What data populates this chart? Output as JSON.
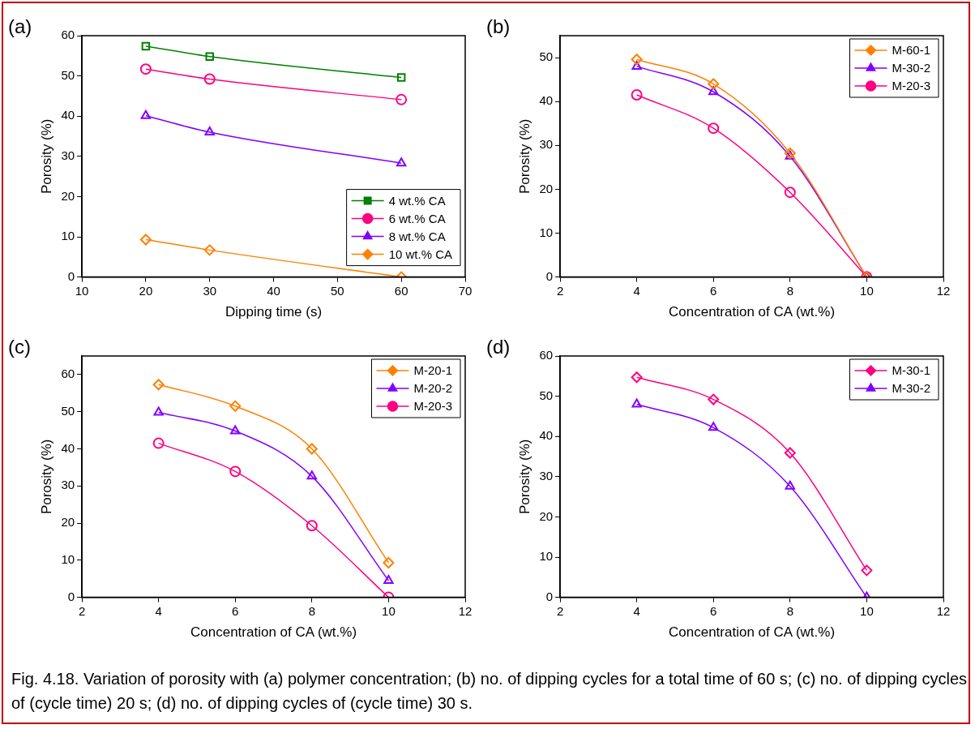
{
  "chart_data": [
    {
      "type": "line",
      "title": "(a)",
      "xlabel": "Dipping time (s)",
      "ylabel": "Porosity (%)",
      "xlim": [
        10,
        70
      ],
      "xticks": [
        10,
        20,
        30,
        40,
        50,
        60,
        70
      ],
      "ylim": [
        0,
        60
      ],
      "yticks": [
        0,
        10,
        20,
        30,
        40,
        50,
        60
      ],
      "grid": false,
      "legend": "bottom right",
      "line_style": "solid",
      "x": [
        20,
        30,
        60
      ],
      "series": [
        {
          "name": "4 wt.% CA",
          "color": "#008000",
          "marker": "square",
          "values": [
            57.4,
            54.8,
            49.6
          ]
        },
        {
          "name": "6 wt.% CA",
          "color": "#ff0080",
          "marker": "circle",
          "values": [
            51.7,
            49.2,
            44.1
          ]
        },
        {
          "name": "8 wt.% CA",
          "color": "#8000ff",
          "marker": "triangle",
          "values": [
            40.1,
            36.0,
            28.3
          ]
        },
        {
          "name": "10 wt.% CA",
          "color": "#ff8000",
          "marker": "diamond",
          "values": [
            9.3,
            6.7,
            0
          ]
        }
      ],
      "annotations": [
        "Fig. 4.18. Variation of porosity with (a) polymer concentration; (b) no. of dipping cycles for a total time of 60 s; (c) no. of dipping cycles of (cycle time) 20 s; (d) no. of dipping cycles of (cycle time) 30 s."
      ]
    },
    {
      "type": "line",
      "title": "(b)",
      "xlabel": "Concentration of CA (wt.%)",
      "ylabel": "Porosity (%)",
      "xlim": [
        2,
        12
      ],
      "xticks": [
        2,
        4,
        6,
        8,
        10,
        12
      ],
      "ylim": [
        0,
        55
      ],
      "yticks": [
        0,
        10,
        20,
        30,
        40,
        50
      ],
      "grid": false,
      "legend": "top right",
      "line_style": "solid",
      "x": [
        4,
        6,
        8,
        10
      ],
      "series": [
        {
          "name": "M-60-1",
          "color": "#ff8000",
          "marker": "diamond",
          "values": [
            49.6,
            44.0,
            28.2,
            0
          ]
        },
        {
          "name": "M-30-2",
          "color": "#8000ff",
          "marker": "triangle",
          "values": [
            48.0,
            42.2,
            27.5,
            0
          ]
        },
        {
          "name": "M-20-3",
          "color": "#ff0080",
          "marker": "circle",
          "values": [
            41.5,
            33.9,
            19.3,
            0
          ]
        }
      ]
    },
    {
      "type": "line",
      "title": "(c)",
      "xlabel": "Concentration of CA (wt.%)",
      "ylabel": "Porosity (%)",
      "xlim": [
        2,
        12
      ],
      "xticks": [
        2,
        4,
        6,
        8,
        10,
        12
      ],
      "ylim": [
        0,
        65
      ],
      "yticks": [
        0,
        10,
        20,
        30,
        40,
        50,
        60
      ],
      "grid": false,
      "legend": "top right",
      "line_style": "solid",
      "x": [
        4,
        6,
        8,
        10
      ],
      "series": [
        {
          "name": "M-20-1",
          "color": "#ff8000",
          "marker": "diamond",
          "values": [
            57.3,
            51.5,
            40.0,
            9.3
          ]
        },
        {
          "name": "M-20-2",
          "color": "#8000ff",
          "marker": "triangle",
          "values": [
            49.8,
            44.8,
            32.6,
            4.5
          ]
        },
        {
          "name": "M-20-3",
          "color": "#ff0080",
          "marker": "circle",
          "values": [
            41.5,
            33.9,
            19.3,
            0
          ]
        }
      ]
    },
    {
      "type": "line",
      "title": "(d)",
      "xlabel": "Concentration of CA (wt.%)",
      "ylabel": "Porosity (%)",
      "xlim": [
        2,
        12
      ],
      "xticks": [
        2,
        4,
        6,
        8,
        10,
        12
      ],
      "ylim": [
        0,
        60
      ],
      "yticks": [
        0,
        10,
        20,
        30,
        40,
        50,
        60
      ],
      "grid": false,
      "legend": "top right",
      "line_style": "solid",
      "x": [
        4,
        6,
        8,
        10
      ],
      "series": [
        {
          "name": "M-30-1",
          "color": "#ff0080",
          "marker": "diamond",
          "values": [
            54.7,
            49.2,
            35.9,
            6.7
          ]
        },
        {
          "name": "M-30-2",
          "color": "#8000ff",
          "marker": "triangle",
          "values": [
            48.0,
            42.2,
            27.6,
            0
          ]
        }
      ]
    }
  ]
}
